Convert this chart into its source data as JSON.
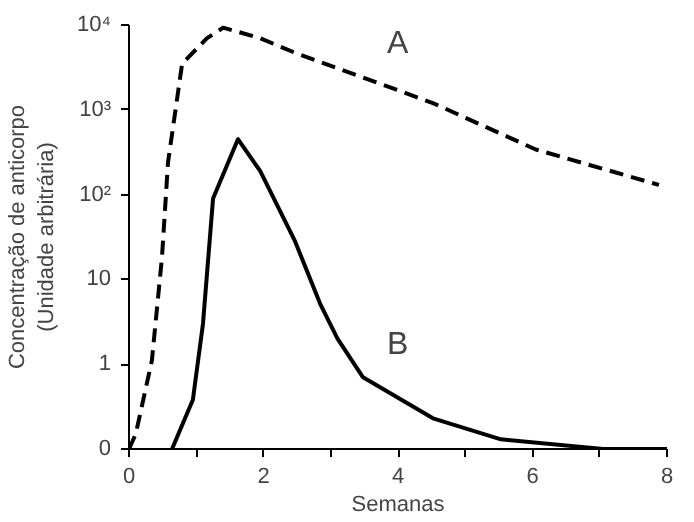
{
  "chart_data": {
    "type": "line",
    "xlabel": "Semanas",
    "ylabel": "Concentração de anticorpo\n(Unidade arbitrária)",
    "log": "y",
    "grid": false,
    "marker": "none",
    "xlim": [
      0,
      8
    ],
    "ylim": [
      0.1,
      10000
    ],
    "xticks": [
      0,
      {
        "value": 1,
        "label": null
      },
      2,
      {
        "value": 3,
        "label": null
      },
      4,
      {
        "value": 5,
        "label": null
      },
      6,
      {
        "value": 7,
        "label": null
      },
      8
    ],
    "yticks": [
      {
        "value": 0.1,
        "label": "0"
      },
      1,
      10,
      {
        "value": 100,
        "label": "10²"
      },
      {
        "value": 1000,
        "label": "10³"
      },
      {
        "value": 10000,
        "label": "10⁴"
      }
    ],
    "series": [
      {
        "name": "A",
        "color": "#000000",
        "line_style": "dashed",
        "x": [
          0,
          0.1,
          0.34,
          0.49,
          0.58,
          0.79,
          1.16,
          1.4,
          1.95,
          2.47,
          4.52,
          6.05,
          7.88
        ],
        "values": [
          0.1,
          0.15,
          1.1,
          18,
          240,
          3500,
          7000,
          9300,
          7000,
          4700,
          1200,
          340,
          130
        ]
      },
      {
        "name": "B",
        "color": "#000000",
        "line_style": "solid",
        "x": [
          0.64,
          0.95,
          1.1,
          1.25,
          1.62,
          1.95,
          2.47,
          2.85,
          3.1,
          3.48,
          4.52,
          5.53,
          7.05,
          8
        ],
        "values": [
          0.1,
          0.38,
          3,
          90,
          450,
          190,
          28,
          5,
          2,
          0.7,
          0.23,
          0.13,
          0.1,
          0.1
        ]
      }
    ]
  }
}
